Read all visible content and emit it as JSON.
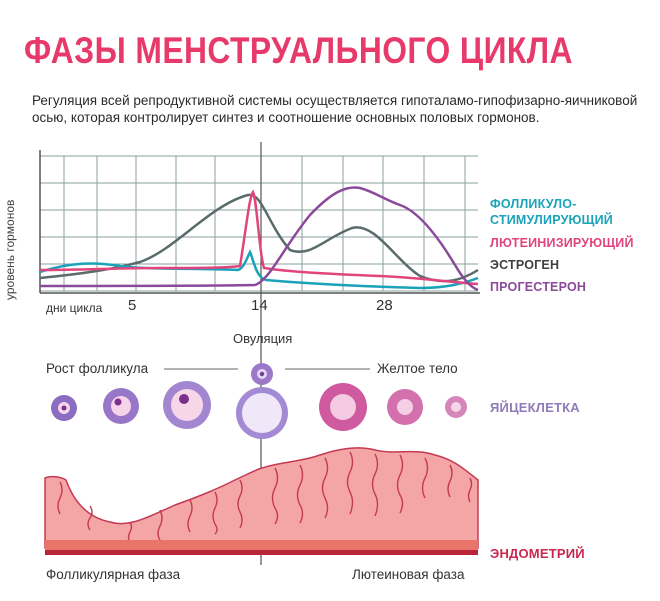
{
  "title": "ФАЗЫ МЕНСТРУАЛЬНОГО ЦИКЛА",
  "subtitle": "Регуляция всей репродуктивной системы осуществляется гипоталамо-гипофизарно-яичниковой осью, которая контролирует синтез и соотношение основных половых гормонов.",
  "chart": {
    "ylabel": "уровень гормонов",
    "xlabel": "дни цикла",
    "ticks": [
      "5",
      "14",
      "28"
    ],
    "ovulation_label": "Овуляция"
  },
  "legend": [
    {
      "line1": "ФОЛЛИКУЛО-",
      "line2": "СТИМУЛИРУЮЩИЙ",
      "color": "#1aa3b8"
    },
    {
      "line1": "ЛЮТЕИНИЗИРУЮЩИЙ",
      "color": "#e0457d"
    },
    {
      "line1": "ЭСТРОГЕН",
      "color": "#3f3f3f"
    },
    {
      "line1": "ПРОГЕСТЕРОН",
      "color": "#8a4a9a"
    }
  ],
  "follicle": {
    "growth_label": "Рост фолликула",
    "corpus_label": "Желтое тело",
    "egg_label": "ЯЙЦЕКЛЕТКА"
  },
  "endometrium": {
    "label": "ЭНДОМЕТРИЙ",
    "phase_follicular": "Фолликулярная фаза",
    "phase_luteal": "Лютеиновая фаза"
  },
  "colors": {
    "accent": "#e8396b",
    "egg_label": "#8e7bb8",
    "endometrium_label": "#c8274f",
    "tissue": "#f4a6a6",
    "tissue_stroke": "#c43a52",
    "grid": "#8aa0a0"
  }
}
